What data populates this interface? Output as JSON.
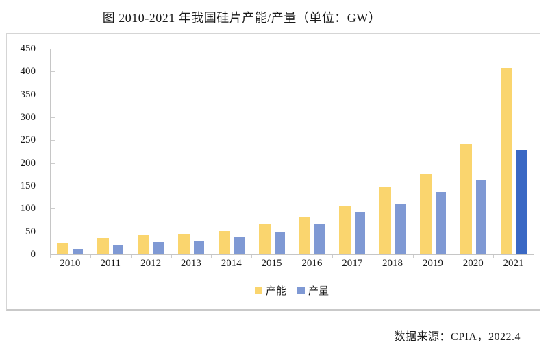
{
  "title": "图 2010-2021 年我国硅片产能/产量（单位：GW）",
  "footer": {
    "source": "数据来源：CPIA，2022.4"
  },
  "colors": {
    "capacity": "#FAD56E",
    "output": "#7F99D4",
    "output_highlight": "#3A68C4",
    "axis": "#C6C6C6",
    "text": "#1A1A1A"
  },
  "chart_data": {
    "type": "bar",
    "title": "图 2010-2021 年我国硅片产能/产量（单位：GW）",
    "unit": "GW",
    "categories": [
      "2010",
      "2011",
      "2012",
      "2013",
      "2014",
      "2015",
      "2016",
      "2017",
      "2018",
      "2019",
      "2020",
      "2021"
    ],
    "series": [
      {
        "name": "产能",
        "color_key": "capacity",
        "values": [
          24,
          35,
          41,
          42,
          50,
          64,
          81,
          105,
          146,
          174,
          240,
          407
        ]
      },
      {
        "name": "产量",
        "color_key": "output",
        "values": [
          11,
          20,
          25,
          29,
          38,
          48,
          64,
          92,
          108,
          135,
          161,
          227
        ]
      }
    ],
    "highlight": {
      "series": "产量",
      "category": "2021",
      "color_key": "output_highlight"
    },
    "ylim": [
      0,
      450
    ],
    "ytick_step": 50,
    "grid": false,
    "legend_position": "bottom",
    "source_note": "数据来源：CPIA，2022.4"
  }
}
